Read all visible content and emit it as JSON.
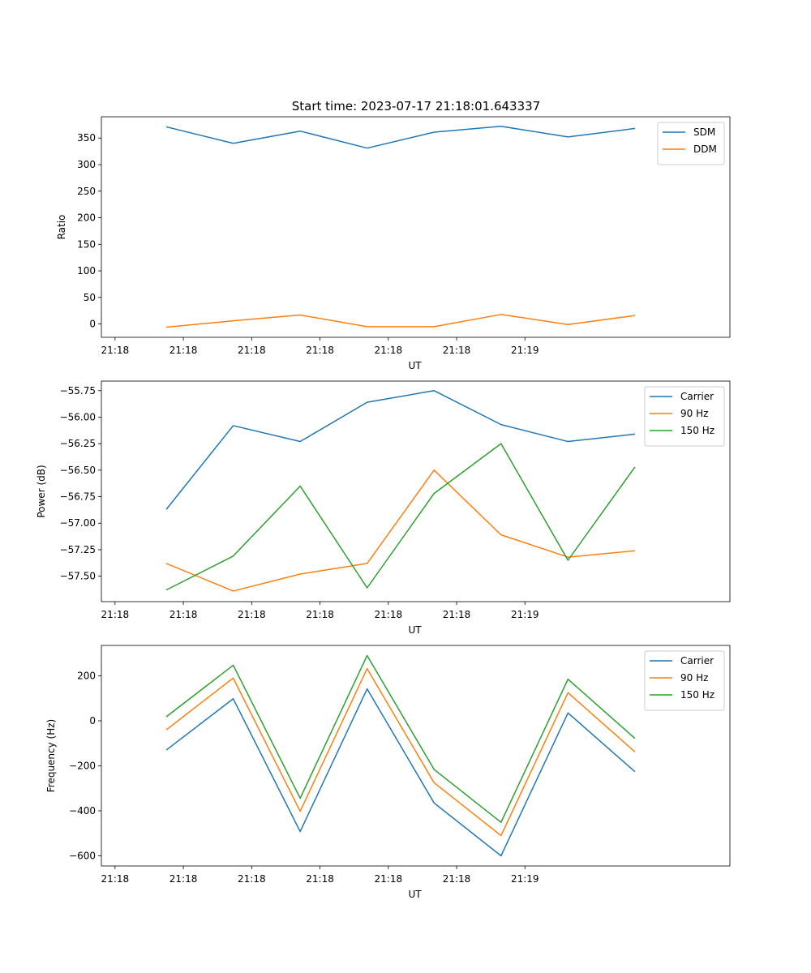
{
  "figure": {
    "title": "Start time: 2023-07-17 21:18:01.643337"
  },
  "colors": {
    "blue": "#1f77b4",
    "orange": "#ff7f0e",
    "green": "#2ca02c"
  },
  "chart_data": [
    {
      "type": "line",
      "ylabel": "Ratio",
      "xlabel": "UT",
      "xticks": [
        "21:18",
        "21:18",
        "21:18",
        "21:18",
        "21:18",
        "21:18",
        "21:19"
      ],
      "xlim": [
        -0.2,
        9.0
      ],
      "ylim": [
        -25,
        390
      ],
      "yticks": [
        0,
        50,
        100,
        150,
        200,
        250,
        300,
        350
      ],
      "ytick_labels": [
        "0",
        "50",
        "100",
        "150",
        "200",
        "250",
        "300",
        "350"
      ],
      "x": [
        0.75,
        1.73,
        2.71,
        3.69,
        4.67,
        5.65,
        6.63,
        7.61
      ],
      "legend": "upper right",
      "series": [
        {
          "name": "SDM",
          "color": "blue",
          "values": [
            371,
            340,
            363,
            331,
            361,
            372,
            352,
            368
          ]
        },
        {
          "name": "DDM",
          "color": "orange",
          "values": [
            -6,
            6,
            17,
            -5,
            -5,
            18,
            -1,
            16
          ]
        }
      ]
    },
    {
      "type": "line",
      "ylabel": "Power (dB)",
      "xlabel": "UT",
      "xticks": [
        "21:18",
        "21:18",
        "21:18",
        "21:18",
        "21:18",
        "21:18",
        "21:19"
      ],
      "xlim": [
        -0.2,
        9.0
      ],
      "ylim": [
        -57.74,
        -55.66
      ],
      "yticks": [
        -57.5,
        -57.25,
        -57.0,
        -56.75,
        -56.5,
        -56.25,
        -56.0,
        -55.75
      ],
      "ytick_labels": [
        "−57.50",
        "−57.25",
        "−57.00",
        "−56.75",
        "−56.50",
        "−56.25",
        "−56.00",
        "−55.75"
      ],
      "x": [
        0.75,
        1.73,
        2.71,
        3.69,
        4.67,
        5.65,
        6.63,
        7.61
      ],
      "legend": "upper right",
      "series": [
        {
          "name": "Carrier",
          "color": "blue",
          "values": [
            -56.87,
            -56.08,
            -56.23,
            -55.86,
            -55.75,
            -56.07,
            -56.23,
            -56.16
          ]
        },
        {
          "name": "90 Hz",
          "color": "orange",
          "values": [
            -57.38,
            -57.64,
            -57.48,
            -57.38,
            -56.5,
            -57.11,
            -57.32,
            -57.26
          ]
        },
        {
          "name": "150 Hz",
          "color": "green",
          "values": [
            -57.63,
            -57.31,
            -56.65,
            -57.61,
            -56.72,
            -56.25,
            -57.35,
            -56.47
          ]
        }
      ]
    },
    {
      "type": "line",
      "ylabel": "Frequency (Hz)",
      "xlabel": "UT",
      "xticks": [
        "21:18",
        "21:18",
        "21:18",
        "21:18",
        "21:18",
        "21:18",
        "21:19"
      ],
      "xlim": [
        -0.2,
        9.0
      ],
      "ylim": [
        -645,
        335
      ],
      "yticks": [
        -600,
        -400,
        -200,
        0,
        200
      ],
      "ytick_labels": [
        "−600",
        "−400",
        "−200",
        "0",
        "200"
      ],
      "x": [
        0.75,
        1.73,
        2.71,
        3.69,
        4.67,
        5.65,
        6.63,
        7.61
      ],
      "legend": "upper right",
      "series": [
        {
          "name": "Carrier",
          "color": "blue",
          "values": [
            -130,
            98,
            -492,
            142,
            -365,
            -600,
            35,
            -226
          ]
        },
        {
          "name": "90 Hz",
          "color": "orange",
          "values": [
            -40,
            190,
            -402,
            232,
            -275,
            -510,
            125,
            -138
          ]
        },
        {
          "name": "150 Hz",
          "color": "green",
          "values": [
            18,
            247,
            -344,
            290,
            -216,
            -451,
            185,
            -78
          ]
        }
      ]
    }
  ]
}
